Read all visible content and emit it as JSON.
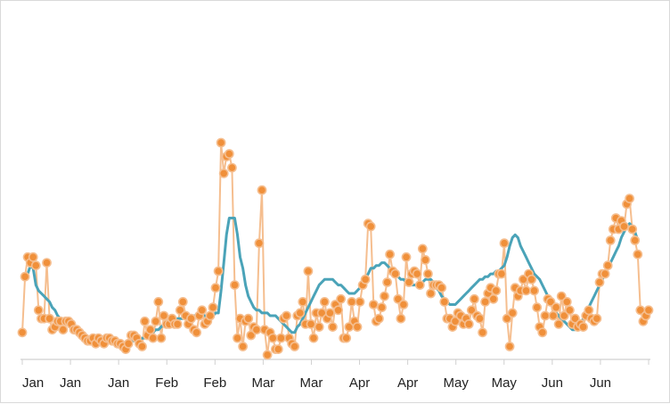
{
  "chart_data": {
    "type": "line",
    "x_tick_labels": [
      "Jan",
      "Jan",
      "Jan",
      "Feb",
      "Feb",
      "Mar",
      "Mar",
      "Apr",
      "Apr",
      "May",
      "May",
      "Jun",
      "Jun"
    ],
    "ylim": [
      0,
      115
    ],
    "grid": false,
    "series": [
      {
        "style": "line+markers",
        "color": "#f5be8f",
        "marker_fill": "#f0903a",
        "values": [
          9,
          29,
          36,
          34,
          36,
          33,
          17,
          14,
          14,
          34,
          14,
          10,
          11,
          13,
          13,
          10,
          13,
          13,
          12,
          10,
          10,
          9,
          8,
          7,
          6,
          6,
          7,
          5,
          7,
          6,
          5,
          7,
          7,
          6,
          6,
          5,
          5,
          4,
          3,
          5,
          8,
          8,
          7,
          5,
          4,
          13,
          8,
          10,
          7,
          13,
          20,
          7,
          15,
          12,
          12,
          14,
          12,
          12,
          17,
          20,
          15,
          12,
          14,
          10,
          9,
          15,
          17,
          12,
          13,
          15,
          18,
          25,
          31,
          77,
          66,
          72,
          73,
          68,
          26,
          7,
          14,
          4,
          13,
          14,
          8,
          11,
          10,
          41,
          60,
          10,
          1,
          9,
          7,
          3,
          3,
          7,
          14,
          15,
          7,
          5,
          4,
          15,
          16,
          20,
          12,
          31,
          12,
          7,
          16,
          11,
          16,
          20,
          14,
          16,
          11,
          19,
          17,
          21,
          7,
          7,
          11,
          20,
          13,
          11,
          20,
          26,
          28,
          48,
          47,
          19,
          13,
          14,
          18,
          22,
          27,
          37,
          31,
          30,
          21,
          14,
          19,
          36,
          27,
          30,
          31,
          30,
          26,
          39,
          35,
          30,
          23,
          26,
          26,
          26,
          25,
          20,
          14,
          14,
          11,
          13,
          16,
          15,
          12,
          14,
          12,
          17,
          21,
          15,
          14,
          9,
          20,
          23,
          25,
          21,
          24,
          30,
          30,
          41,
          14,
          4,
          16,
          25,
          22,
          24,
          28,
          24,
          30,
          28,
          24,
          18,
          11,
          9,
          15,
          21,
          20,
          15,
          18,
          12,
          22,
          15,
          20,
          17,
          12,
          14,
          11,
          12,
          11,
          15,
          17,
          14,
          13,
          14,
          27,
          30,
          30,
          33,
          42,
          46,
          50,
          46,
          49,
          47,
          55,
          57,
          46,
          42,
          37,
          17,
          13,
          15,
          17
        ]
      },
      {
        "style": "line",
        "color": "#4aa3b8",
        "values": [
          9,
          29,
          30,
          33,
          32,
          26,
          24,
          23,
          22,
          21,
          20,
          18,
          17,
          15,
          14,
          13,
          13,
          12,
          11,
          10,
          9,
          9,
          8,
          7,
          7,
          6,
          6,
          6,
          6,
          6,
          6,
          6,
          6,
          5,
          5,
          5,
          5,
          5,
          5,
          6,
          6,
          6,
          6,
          6,
          7,
          7,
          8,
          8,
          9,
          10,
          10,
          11,
          12,
          12,
          13,
          13,
          13,
          14,
          14,
          14,
          15,
          15,
          15,
          15,
          15,
          15,
          15,
          15,
          15,
          15,
          15,
          16,
          16,
          24,
          34,
          44,
          50,
          50,
          50,
          44,
          36,
          32,
          26,
          22,
          20,
          18,
          17,
          17,
          16,
          16,
          16,
          15,
          15,
          15,
          14,
          13,
          12,
          11,
          10,
          9,
          9,
          11,
          12,
          14,
          16,
          18,
          20,
          22,
          24,
          26,
          27,
          28,
          28,
          28,
          28,
          27,
          26,
          26,
          25,
          24,
          23,
          23,
          23,
          24,
          25,
          26,
          28,
          30,
          32,
          32,
          33,
          33,
          34,
          34,
          33,
          32,
          31,
          30,
          29,
          28,
          28,
          27,
          27,
          26,
          26,
          26,
          27,
          27,
          28,
          28,
          28,
          27,
          25,
          24,
          22,
          21,
          20,
          19,
          19,
          19,
          20,
          21,
          22,
          23,
          24,
          25,
          26,
          27,
          28,
          28,
          29,
          29,
          30,
          30,
          31,
          31,
          32,
          33,
          36,
          40,
          43,
          44,
          43,
          40,
          38,
          36,
          34,
          32,
          30,
          29,
          28,
          26,
          24,
          22,
          20,
          18,
          16,
          15,
          14,
          13,
          12,
          11,
          10,
          10,
          11,
          12,
          14,
          16,
          18,
          20,
          22,
          24,
          26,
          28,
          30,
          32,
          34,
          36,
          38,
          40,
          43,
          45,
          47,
          48,
          47,
          45,
          42
        ]
      }
    ]
  }
}
